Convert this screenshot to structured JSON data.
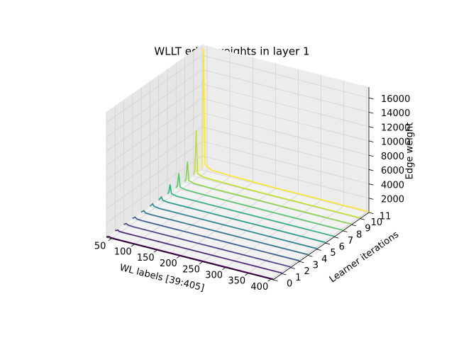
{
  "chart_data": {
    "type": "line3d",
    "title": "WLLT edge weights in layer 1",
    "xlabel": "WL labels [39:405]",
    "ylabel": "Learner iterations",
    "zlabel": "Edge weight",
    "xlim": [
      39,
      405
    ],
    "ylim": [
      0,
      11
    ],
    "zlim": [
      0,
      17500
    ],
    "xticks": [
      50,
      100,
      150,
      200,
      250,
      300,
      350,
      400
    ],
    "yticks": [
      0,
      1,
      2,
      3,
      4,
      5,
      6,
      7,
      8,
      9,
      10,
      11
    ],
    "zticks": [
      2000,
      4000,
      6000,
      8000,
      10000,
      12000,
      14000,
      16000
    ],
    "grid": true,
    "x": [
      39,
      42,
      45,
      48,
      60,
      100,
      150,
      200,
      250,
      300,
      350,
      405
    ],
    "series": [
      {
        "y": 0,
        "color": "#440154",
        "values": [
          100,
          150,
          200,
          120,
          100,
          100,
          100,
          100,
          100,
          100,
          100,
          100
        ]
      },
      {
        "y": 1,
        "color": "#482173",
        "values": [
          100,
          150,
          250,
          120,
          100,
          100,
          100,
          100,
          100,
          100,
          100,
          100
        ]
      },
      {
        "y": 2,
        "color": "#433e85",
        "values": [
          100,
          200,
          300,
          150,
          100,
          100,
          100,
          100,
          100,
          100,
          100,
          100
        ]
      },
      {
        "y": 3,
        "color": "#38588c",
        "values": [
          100,
          200,
          350,
          150,
          100,
          100,
          100,
          100,
          100,
          100,
          100,
          100
        ]
      },
      {
        "y": 4,
        "color": "#2d708e",
        "values": [
          100,
          250,
          400,
          150,
          100,
          100,
          100,
          100,
          100,
          100,
          100,
          100
        ]
      },
      {
        "y": 5,
        "color": "#25858e",
        "values": [
          100,
          250,
          500,
          200,
          100,
          100,
          100,
          100,
          100,
          100,
          100,
          100
        ]
      },
      {
        "y": 6,
        "color": "#1e9b8a",
        "values": [
          100,
          300,
          600,
          200,
          100,
          100,
          100,
          100,
          100,
          100,
          100,
          100
        ]
      },
      {
        "y": 7,
        "color": "#2ab07f",
        "values": [
          100,
          300,
          1500,
          250,
          100,
          100,
          100,
          100,
          100,
          100,
          100,
          100
        ]
      },
      {
        "y": 8,
        "color": "#52c569",
        "values": [
          100,
          400,
          2200,
          300,
          150,
          100,
          100,
          100,
          100,
          100,
          100,
          100
        ]
      },
      {
        "y": 9,
        "color": "#86d549",
        "values": [
          100,
          500,
          3000,
          350,
          150,
          100,
          100,
          100,
          100,
          100,
          100,
          100
        ]
      },
      {
        "y": 10,
        "color": "#c2df23",
        "values": [
          200,
          800,
          6500,
          500,
          200,
          150,
          100,
          100,
          100,
          100,
          100,
          100
        ]
      },
      {
        "y": 11,
        "color": "#fde725",
        "values": [
          300,
          17000,
          1000,
          700,
          300,
          200,
          150,
          100,
          100,
          100,
          100,
          100
        ]
      }
    ]
  }
}
